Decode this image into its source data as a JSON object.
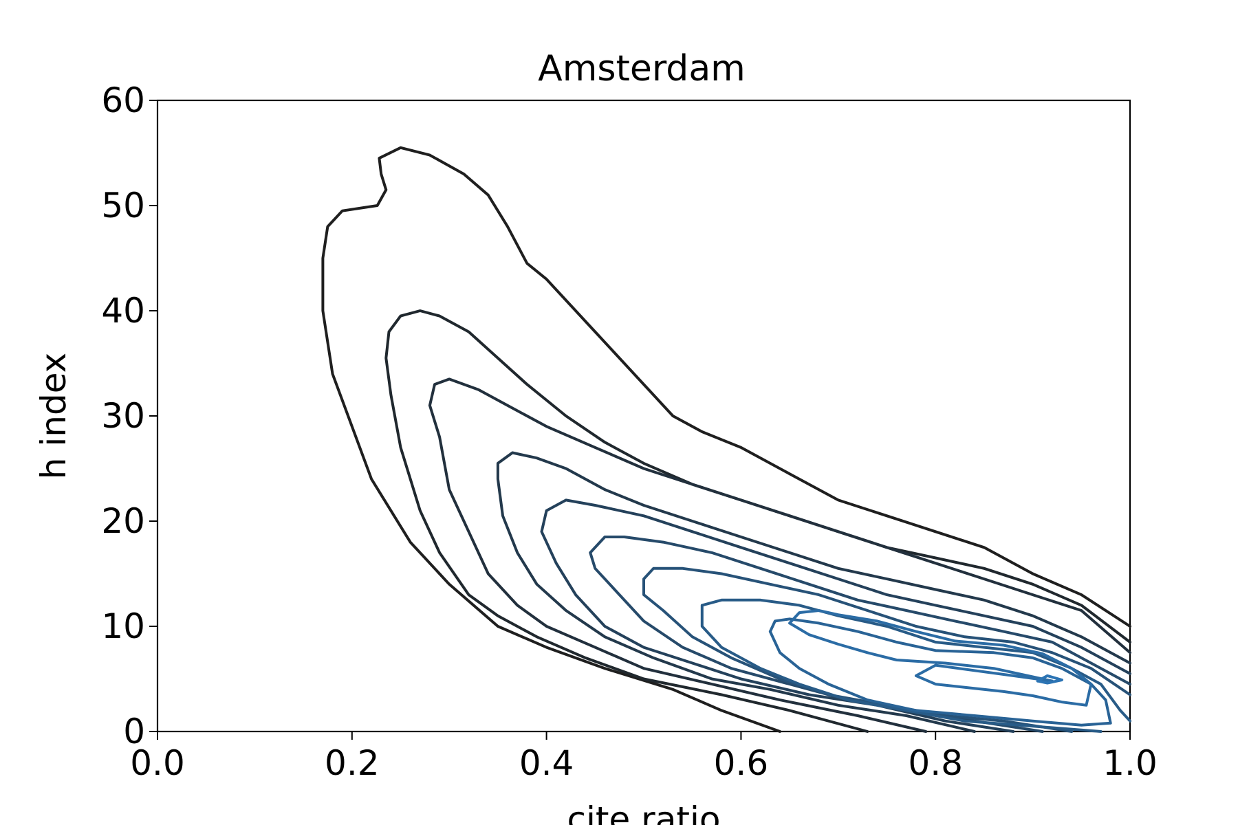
{
  "chart_data": {
    "type": "contour",
    "title": "Amsterdam",
    "xlabel": "cite ratio",
    "ylabel": "h index",
    "xlim": [
      0.0,
      1.0
    ],
    "ylim": [
      0,
      60
    ],
    "xticks": [
      "0.0",
      "0.2",
      "0.4",
      "0.6",
      "0.8",
      "1.0"
    ],
    "yticks": [
      "0",
      "10",
      "20",
      "30",
      "40",
      "50",
      "60"
    ],
    "grid": false,
    "legend": "none",
    "colors": {
      "outer": "#1f1f1f",
      "inner": "#2c74b4"
    },
    "contours": [
      {
        "level": 1,
        "points": [
          [
            0.64,
            0
          ],
          [
            0.58,
            2
          ],
          [
            0.53,
            4
          ],
          [
            0.46,
            6
          ],
          [
            0.4,
            8
          ],
          [
            0.35,
            10
          ],
          [
            0.3,
            14
          ],
          [
            0.26,
            18
          ],
          [
            0.22,
            24
          ],
          [
            0.2,
            29
          ],
          [
            0.18,
            34
          ],
          [
            0.17,
            40
          ],
          [
            0.17,
            45
          ],
          [
            0.175,
            48
          ],
          [
            0.19,
            49.5
          ],
          [
            0.226,
            50
          ],
          [
            0.235,
            51.5
          ],
          [
            0.23,
            53
          ],
          [
            0.228,
            54.5
          ],
          [
            0.25,
            55.5
          ],
          [
            0.28,
            54.8
          ],
          [
            0.315,
            53
          ],
          [
            0.34,
            51
          ],
          [
            0.36,
            48
          ],
          [
            0.38,
            44.5
          ],
          [
            0.4,
            43
          ],
          [
            0.45,
            38
          ],
          [
            0.5,
            33
          ],
          [
            0.53,
            30
          ],
          [
            0.56,
            28.5
          ],
          [
            0.6,
            27
          ],
          [
            0.65,
            24.5
          ],
          [
            0.7,
            22
          ],
          [
            0.75,
            20.5
          ],
          [
            0.8,
            19
          ],
          [
            0.85,
            17.5
          ],
          [
            0.9,
            15
          ],
          [
            0.95,
            13
          ],
          [
            1.0,
            10
          ]
        ]
      },
      {
        "level": 2,
        "points": [
          [
            0.73,
            0
          ],
          [
            0.65,
            2
          ],
          [
            0.58,
            3.5
          ],
          [
            0.5,
            5
          ],
          [
            0.44,
            7
          ],
          [
            0.39,
            9
          ],
          [
            0.35,
            11
          ],
          [
            0.32,
            13
          ],
          [
            0.29,
            17
          ],
          [
            0.27,
            21
          ],
          [
            0.25,
            27
          ],
          [
            0.24,
            32
          ],
          [
            0.235,
            35.5
          ],
          [
            0.238,
            38
          ],
          [
            0.25,
            39.5
          ],
          [
            0.27,
            40
          ],
          [
            0.29,
            39.5
          ],
          [
            0.32,
            38
          ],
          [
            0.35,
            35.5
          ],
          [
            0.38,
            33
          ],
          [
            0.42,
            30
          ],
          [
            0.46,
            27.5
          ],
          [
            0.5,
            25.5
          ],
          [
            0.55,
            23.5
          ],
          [
            0.6,
            22
          ],
          [
            0.65,
            20.5
          ],
          [
            0.7,
            19
          ],
          [
            0.75,
            17.5
          ],
          [
            0.8,
            16.5
          ],
          [
            0.85,
            15.5
          ],
          [
            0.9,
            14
          ],
          [
            0.95,
            12
          ],
          [
            1.0,
            8.5
          ]
        ]
      },
      {
        "level": 3,
        "points": [
          [
            0.79,
            0
          ],
          [
            0.72,
            1.5
          ],
          [
            0.64,
            3
          ],
          [
            0.57,
            4.5
          ],
          [
            0.5,
            6
          ],
          [
            0.45,
            8
          ],
          [
            0.4,
            10
          ],
          [
            0.37,
            12
          ],
          [
            0.34,
            15
          ],
          [
            0.32,
            19
          ],
          [
            0.3,
            23
          ],
          [
            0.29,
            28
          ],
          [
            0.28,
            31
          ],
          [
            0.285,
            33
          ],
          [
            0.3,
            33.5
          ],
          [
            0.33,
            32.5
          ],
          [
            0.36,
            31
          ],
          [
            0.4,
            29
          ],
          [
            0.45,
            27
          ],
          [
            0.5,
            25
          ],
          [
            0.55,
            23.5
          ],
          [
            0.6,
            22
          ],
          [
            0.65,
            20.5
          ],
          [
            0.7,
            19
          ],
          [
            0.75,
            17.5
          ],
          [
            0.8,
            16
          ],
          [
            0.85,
            14.5
          ],
          [
            0.9,
            13
          ],
          [
            0.95,
            11.5
          ],
          [
            1.0,
            7.5
          ]
        ]
      },
      {
        "level": 4,
        "points": [
          [
            0.84,
            0
          ],
          [
            0.77,
            1.5
          ],
          [
            0.7,
            2.5
          ],
          [
            0.63,
            4
          ],
          [
            0.57,
            5
          ],
          [
            0.51,
            7
          ],
          [
            0.46,
            9
          ],
          [
            0.42,
            11.5
          ],
          [
            0.39,
            14
          ],
          [
            0.37,
            17
          ],
          [
            0.355,
            20.5
          ],
          [
            0.35,
            24
          ],
          [
            0.35,
            25.5
          ],
          [
            0.365,
            26.5
          ],
          [
            0.39,
            26
          ],
          [
            0.42,
            25
          ],
          [
            0.46,
            23
          ],
          [
            0.5,
            21.5
          ],
          [
            0.55,
            20
          ],
          [
            0.6,
            18.5
          ],
          [
            0.65,
            17
          ],
          [
            0.7,
            15.5
          ],
          [
            0.75,
            14.5
          ],
          [
            0.8,
            13.5
          ],
          [
            0.85,
            12.5
          ],
          [
            0.9,
            11
          ],
          [
            0.95,
            9
          ],
          [
            1.0,
            6.5
          ]
        ]
      },
      {
        "level": 5,
        "points": [
          [
            0.88,
            0
          ],
          [
            0.81,
            1
          ],
          [
            0.74,
            2.5
          ],
          [
            0.67,
            3.5
          ],
          [
            0.6,
            5
          ],
          [
            0.55,
            6.5
          ],
          [
            0.5,
            8
          ],
          [
            0.46,
            10
          ],
          [
            0.43,
            13
          ],
          [
            0.41,
            16
          ],
          [
            0.395,
            19
          ],
          [
            0.4,
            21
          ],
          [
            0.42,
            22
          ],
          [
            0.45,
            21.5
          ],
          [
            0.5,
            20.5
          ],
          [
            0.55,
            19
          ],
          [
            0.6,
            17.5
          ],
          [
            0.65,
            16
          ],
          [
            0.7,
            14.5
          ],
          [
            0.75,
            13
          ],
          [
            0.8,
            12
          ],
          [
            0.85,
            11
          ],
          [
            0.9,
            10
          ],
          [
            0.95,
            8
          ],
          [
            1.0,
            5.5
          ]
        ]
      },
      {
        "level": 6,
        "points": [
          [
            0.91,
            0
          ],
          [
            0.84,
            1
          ],
          [
            0.78,
            2
          ],
          [
            0.71,
            3
          ],
          [
            0.65,
            4.5
          ],
          [
            0.59,
            6
          ],
          [
            0.54,
            8
          ],
          [
            0.5,
            10.5
          ],
          [
            0.47,
            13.5
          ],
          [
            0.45,
            15.5
          ],
          [
            0.445,
            17
          ],
          [
            0.46,
            18.5
          ],
          [
            0.48,
            18.5
          ],
          [
            0.52,
            18
          ],
          [
            0.57,
            17
          ],
          [
            0.62,
            15.5
          ],
          [
            0.67,
            14
          ],
          [
            0.72,
            12.5
          ],
          [
            0.77,
            11.5
          ],
          [
            0.82,
            10.5
          ],
          [
            0.87,
            9.5
          ],
          [
            0.92,
            8.5
          ],
          [
            0.96,
            6.5
          ],
          [
            1.0,
            4.5
          ]
        ]
      },
      {
        "level": 7,
        "points": [
          [
            0.94,
            0
          ],
          [
            0.87,
            1
          ],
          [
            0.81,
            1.5
          ],
          [
            0.75,
            2.5
          ],
          [
            0.69,
            3.5
          ],
          [
            0.64,
            5
          ],
          [
            0.59,
            7
          ],
          [
            0.55,
            9
          ],
          [
            0.52,
            11.5
          ],
          [
            0.5,
            13
          ],
          [
            0.5,
            14.5
          ],
          [
            0.51,
            15.5
          ],
          [
            0.54,
            15.5
          ],
          [
            0.58,
            15
          ],
          [
            0.63,
            14
          ],
          [
            0.68,
            13
          ],
          [
            0.73,
            11.5
          ],
          [
            0.78,
            10
          ],
          [
            0.83,
            9
          ],
          [
            0.88,
            8.5
          ],
          [
            0.92,
            7.5
          ],
          [
            0.96,
            6
          ],
          [
            1.0,
            3.5
          ]
        ]
      },
      {
        "level": 8,
        "points": [
          [
            0.97,
            0
          ],
          [
            0.9,
            0.5
          ],
          [
            0.83,
            1
          ],
          [
            0.77,
            2
          ],
          [
            0.71,
            3
          ],
          [
            0.66,
            4.5
          ],
          [
            0.62,
            6
          ],
          [
            0.58,
            8
          ],
          [
            0.56,
            10
          ],
          [
            0.56,
            12
          ],
          [
            0.58,
            12.5
          ],
          [
            0.62,
            12.5
          ],
          [
            0.66,
            12
          ],
          [
            0.7,
            11
          ],
          [
            0.75,
            10
          ],
          [
            0.8,
            8.5
          ],
          [
            0.85,
            8
          ],
          [
            0.9,
            7.5
          ],
          [
            0.94,
            6
          ],
          [
            0.97,
            4.5
          ],
          [
            0.99,
            2
          ],
          [
            1.0,
            1
          ]
        ]
      },
      {
        "level": 9,
        "points": [
          [
            0.98,
            0.8
          ],
          [
            0.95,
            0.6
          ],
          [
            0.9,
            1
          ],
          [
            0.84,
            1.5
          ],
          [
            0.78,
            2
          ],
          [
            0.73,
            3
          ],
          [
            0.69,
            4.5
          ],
          [
            0.66,
            6
          ],
          [
            0.64,
            7.5
          ],
          [
            0.63,
            9.5
          ],
          [
            0.635,
            10.5
          ],
          [
            0.65,
            10.7
          ],
          [
            0.68,
            10.3
          ],
          [
            0.72,
            9.5
          ],
          [
            0.76,
            8.5
          ],
          [
            0.8,
            7.7
          ],
          [
            0.86,
            7.5
          ],
          [
            0.9,
            7
          ],
          [
            0.93,
            6
          ],
          [
            0.96,
            4.5
          ],
          [
            0.975,
            3
          ],
          [
            0.98,
            0.8
          ]
        ]
      },
      {
        "level": 10,
        "points": [
          [
            0.92,
            4.8
          ],
          [
            0.9,
            5.2
          ],
          [
            0.86,
            6
          ],
          [
            0.81,
            6.5
          ],
          [
            0.76,
            6.8
          ],
          [
            0.73,
            7.5
          ],
          [
            0.7,
            8.3
          ],
          [
            0.67,
            9.2
          ],
          [
            0.65,
            10.3
          ],
          [
            0.66,
            11.3
          ],
          [
            0.68,
            11.5
          ],
          [
            0.7,
            11.1
          ],
          [
            0.74,
            10.5
          ],
          [
            0.78,
            9.5
          ],
          [
            0.82,
            8.6
          ],
          [
            0.87,
            8.2
          ],
          [
            0.91,
            7.4
          ],
          [
            0.94,
            6
          ],
          [
            0.96,
            4.5
          ],
          [
            0.955,
            2.5
          ],
          [
            0.93,
            2.8
          ],
          [
            0.9,
            3.4
          ],
          [
            0.87,
            3.8
          ],
          [
            0.83,
            4.2
          ],
          [
            0.8,
            4.5
          ],
          [
            0.78,
            5.3
          ],
          [
            0.8,
            6.3
          ],
          [
            0.84,
            5.8
          ],
          [
            0.88,
            5.3
          ],
          [
            0.92,
            4.8
          ]
        ]
      },
      {
        "level": 11,
        "points": [
          [
            0.905,
            4.8
          ],
          [
            0.915,
            5.3
          ],
          [
            0.93,
            4.9
          ],
          [
            0.915,
            4.6
          ],
          [
            0.905,
            4.8
          ]
        ]
      }
    ]
  }
}
